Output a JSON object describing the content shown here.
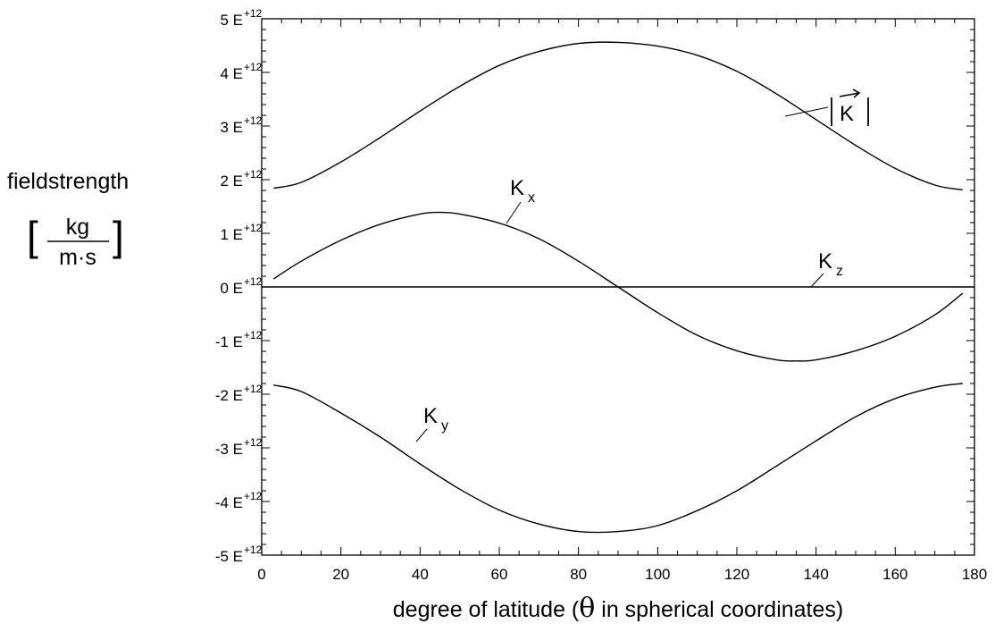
{
  "chart_data": {
    "type": "line",
    "title": "",
    "xlabel": {
      "prefix": "degree of latitude  (",
      "symbol": "θ",
      "suffix": " in spherical coordinates)"
    },
    "ylabel": {
      "word": "fieldstrength",
      "unit_numerator": "kg",
      "unit_denominator": "m·s",
      "bracket_left": "[",
      "bracket_right": "]"
    },
    "xlim": [
      0,
      180
    ],
    "ylim": [
      -5000000000000.0,
      5000000000000.0
    ],
    "x_ticks": [
      "0",
      "20",
      "40",
      "60",
      "80",
      "100",
      "120",
      "140",
      "160",
      "180"
    ],
    "y_ticks": [
      {
        "mantissa": "5",
        "exp": "+12"
      },
      {
        "mantissa": "4",
        "exp": "+12"
      },
      {
        "mantissa": "3",
        "exp": "+12"
      },
      {
        "mantissa": "2",
        "exp": "+12"
      },
      {
        "mantissa": "1",
        "exp": "+12"
      },
      {
        "mantissa": "0",
        "exp": "+12"
      },
      {
        "mantissa": "-1",
        "exp": "+12"
      },
      {
        "mantissa": "-2",
        "exp": "+12"
      },
      {
        "mantissa": "-3",
        "exp": "+12"
      },
      {
        "mantissa": "-4",
        "exp": "+12"
      },
      {
        "mantissa": "-5",
        "exp": "+12"
      }
    ],
    "y_tick_letter": "E",
    "series": [
      {
        "name": "|K|",
        "label": {
          "text": "K",
          "sub": ""
        },
        "x": [
          3,
          10,
          20,
          30,
          40,
          50,
          60,
          70,
          80,
          90,
          100,
          110,
          120,
          130,
          140,
          150,
          160,
          170,
          177
        ],
        "y": [
          1840000000000.0,
          1950000000000.0,
          2330000000000.0,
          2790000000000.0,
          3280000000000.0,
          3740000000000.0,
          4130000000000.0,
          4390000000000.0,
          4540000000000.0,
          4560000000000.0,
          4490000000000.0,
          4320000000000.0,
          4020000000000.0,
          3600000000000.0,
          3120000000000.0,
          2640000000000.0,
          2210000000000.0,
          1900000000000.0,
          1810000000000.0
        ]
      },
      {
        "name": "Kx",
        "label": {
          "text": "K",
          "sub": "x"
        },
        "x": [
          3,
          10,
          20,
          30,
          40,
          45,
          50,
          60,
          70,
          80,
          90,
          100,
          110,
          120,
          130,
          135,
          140,
          150,
          160,
          170,
          177
        ],
        "y": [
          150000000000.0,
          480000000000.0,
          870000000000.0,
          1170000000000.0,
          1360000000000.0,
          1390000000000.0,
          1360000000000.0,
          1190000000000.0,
          900000000000.0,
          480000000000.0,
          0.0,
          -480000000000.0,
          -900000000000.0,
          -1190000000000.0,
          -1360000000000.0,
          -1380000000000.0,
          -1360000000000.0,
          -1190000000000.0,
          -920000000000.0,
          -520000000000.0,
          -120000000000.0
        ]
      },
      {
        "name": "Kz",
        "label": {
          "text": "K",
          "sub": "z"
        },
        "x": [
          0,
          180
        ],
        "y": [
          0,
          0
        ]
      },
      {
        "name": "Ky",
        "label": {
          "text": "K",
          "sub": "y"
        },
        "x": [
          3,
          10,
          20,
          30,
          40,
          50,
          60,
          70,
          80,
          90,
          100,
          110,
          120,
          130,
          140,
          150,
          160,
          170,
          177
        ],
        "y": [
          -1830000000000.0,
          -1950000000000.0,
          -2350000000000.0,
          -2800000000000.0,
          -3300000000000.0,
          -3770000000000.0,
          -4160000000000.0,
          -4420000000000.0,
          -4560000000000.0,
          -4560000000000.0,
          -4450000000000.0,
          -4170000000000.0,
          -3800000000000.0,
          -3340000000000.0,
          -2870000000000.0,
          -2420000000000.0,
          -2080000000000.0,
          -1870000000000.0,
          -1800000000000.0
        ]
      }
    ],
    "grid": false,
    "legend": "none"
  }
}
